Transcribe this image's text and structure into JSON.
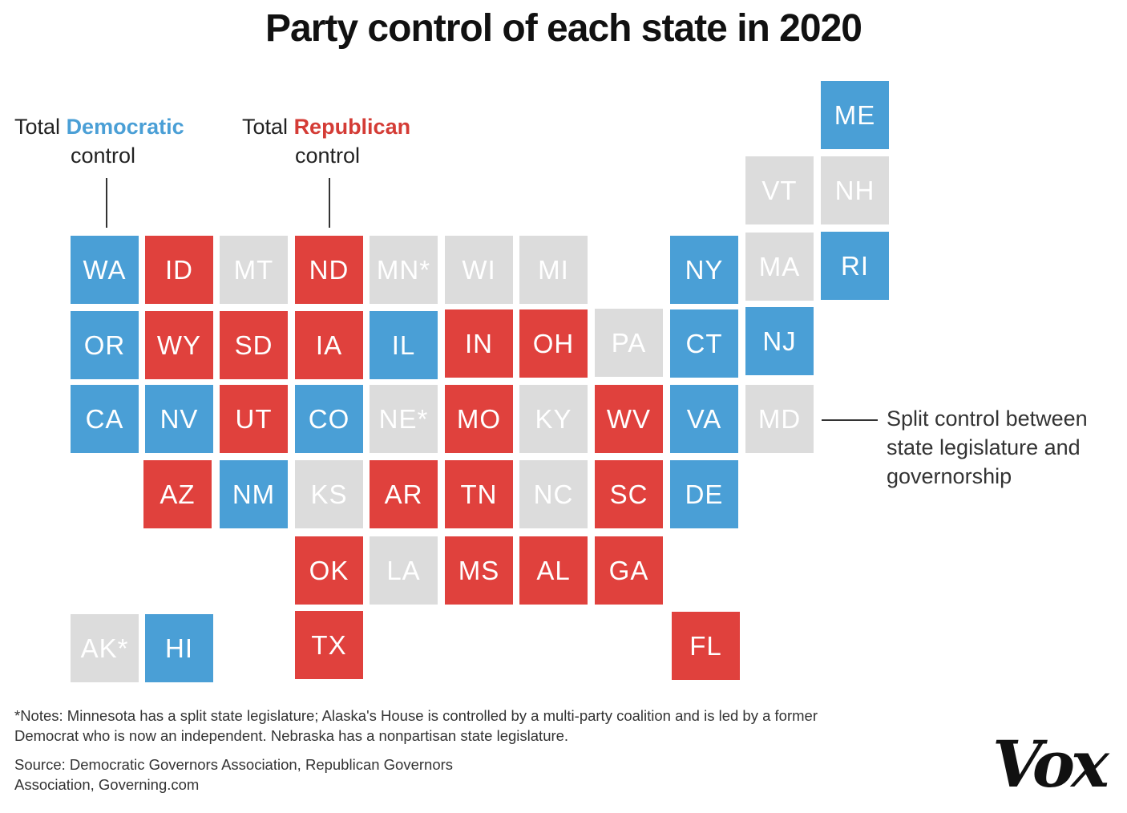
{
  "title": "Party control of each state in 2020",
  "legend": {
    "dem_prefix": "Total",
    "dem_party": "Democratic",
    "dem_suffix": "control",
    "rep_prefix": "Total",
    "rep_party": "Republican",
    "rep_suffix": "control",
    "split_text": "Split control between state legislature and governorship"
  },
  "colors": {
    "democratic": "#4a9fd6",
    "republican": "#e0413d",
    "split": "#dcdcdc"
  },
  "states": [
    {
      "code": "ME",
      "party": "dem"
    },
    {
      "code": "VT",
      "party": "split"
    },
    {
      "code": "NH",
      "party": "split"
    },
    {
      "code": "WA",
      "party": "dem"
    },
    {
      "code": "ID",
      "party": "rep"
    },
    {
      "code": "MT",
      "party": "split"
    },
    {
      "code": "ND",
      "party": "rep"
    },
    {
      "code": "MN*",
      "party": "split"
    },
    {
      "code": "WI",
      "party": "split"
    },
    {
      "code": "MI",
      "party": "split"
    },
    {
      "code": "NY",
      "party": "dem"
    },
    {
      "code": "MA",
      "party": "split"
    },
    {
      "code": "RI",
      "party": "dem"
    },
    {
      "code": "OR",
      "party": "dem"
    },
    {
      "code": "WY",
      "party": "rep"
    },
    {
      "code": "SD",
      "party": "rep"
    },
    {
      "code": "IA",
      "party": "rep"
    },
    {
      "code": "IL",
      "party": "dem"
    },
    {
      "code": "IN",
      "party": "rep"
    },
    {
      "code": "OH",
      "party": "rep"
    },
    {
      "code": "PA",
      "party": "split"
    },
    {
      "code": "CT",
      "party": "dem"
    },
    {
      "code": "NJ",
      "party": "dem"
    },
    {
      "code": "CA",
      "party": "dem"
    },
    {
      "code": "NV",
      "party": "dem"
    },
    {
      "code": "UT",
      "party": "rep"
    },
    {
      "code": "CO",
      "party": "dem"
    },
    {
      "code": "NE*",
      "party": "split"
    },
    {
      "code": "MO",
      "party": "rep"
    },
    {
      "code": "KY",
      "party": "split"
    },
    {
      "code": "WV",
      "party": "rep"
    },
    {
      "code": "VA",
      "party": "dem"
    },
    {
      "code": "MD",
      "party": "split"
    },
    {
      "code": "AZ",
      "party": "rep"
    },
    {
      "code": "NM",
      "party": "dem"
    },
    {
      "code": "KS",
      "party": "split"
    },
    {
      "code": "AR",
      "party": "rep"
    },
    {
      "code": "TN",
      "party": "rep"
    },
    {
      "code": "NC",
      "party": "split"
    },
    {
      "code": "SC",
      "party": "rep"
    },
    {
      "code": "DE",
      "party": "dem"
    },
    {
      "code": "OK",
      "party": "rep"
    },
    {
      "code": "LA",
      "party": "split"
    },
    {
      "code": "MS",
      "party": "rep"
    },
    {
      "code": "AL",
      "party": "rep"
    },
    {
      "code": "GA",
      "party": "rep"
    },
    {
      "code": "AK*",
      "party": "split"
    },
    {
      "code": "HI",
      "party": "dem"
    },
    {
      "code": "TX",
      "party": "rep"
    },
    {
      "code": "FL",
      "party": "rep"
    }
  ],
  "notes": "*Notes: Minnesota has a split state legislature; Alaska's House is controlled by a multi-party coalition and is led by a former Democrat who is now an independent. Nebraska has a nonpartisan state legislature.",
  "source": "Source: Democratic Governors Association, Republican Governors Association, Governing.com",
  "logo": "Vox"
}
